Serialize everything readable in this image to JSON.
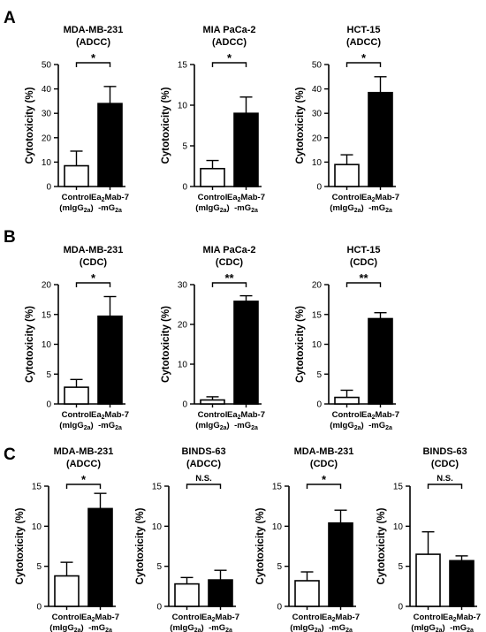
{
  "panels": [
    {
      "letter": "A",
      "charts": [
        0,
        1,
        2
      ]
    },
    {
      "letter": "B",
      "charts": [
        3,
        4,
        5
      ]
    },
    {
      "letter": "C",
      "charts": [
        6,
        7,
        8,
        9
      ]
    }
  ],
  "chart_data": [
    {
      "type": "bar",
      "title": "MDA-MB-231",
      "subtitle": "(ADCC)",
      "ylabel": "Cytotoxicity (%)",
      "ylim": [
        0,
        50
      ],
      "yticks": [
        0,
        10,
        20,
        30,
        40,
        50
      ],
      "categories": [
        {
          "line1_main": "Control",
          "line2_main": "(mIgG",
          "line2_sub": "2a",
          "line2_tail": ")"
        },
        {
          "line1_main": "Ea",
          "line1_sub": "2",
          "line1_tail": "Mab-7",
          "line2_main": "-mG",
          "line2_sub": "2a",
          "line2_tail": ""
        }
      ],
      "values": [
        8.5,
        34
      ],
      "errors": [
        6,
        7
      ],
      "fills": [
        "#ffffff",
        "#000000"
      ],
      "significance": "*"
    },
    {
      "type": "bar",
      "title": "MIA PaCa-2",
      "subtitle": "(ADCC)",
      "ylabel": "Cytotoxicity (%)",
      "ylim": [
        0,
        15
      ],
      "yticks": [
        0,
        5,
        10,
        15
      ],
      "categories": [
        {
          "line1_main": "Control",
          "line2_main": "(mIgG",
          "line2_sub": "2a",
          "line2_tail": ")"
        },
        {
          "line1_main": "Ea",
          "line1_sub": "2",
          "line1_tail": "Mab-7",
          "line2_main": "-mG",
          "line2_sub": "2a",
          "line2_tail": ""
        }
      ],
      "values": [
        2.2,
        9
      ],
      "errors": [
        1,
        2
      ],
      "fills": [
        "#ffffff",
        "#000000"
      ],
      "significance": "*"
    },
    {
      "type": "bar",
      "title": "HCT-15",
      "subtitle": "(ADCC)",
      "ylabel": "Cytotoxicity (%)",
      "ylim": [
        0,
        50
      ],
      "yticks": [
        0,
        10,
        20,
        30,
        40,
        50
      ],
      "categories": [
        {
          "line1_main": "Control",
          "line2_main": "(mIgG",
          "line2_sub": "2a",
          "line2_tail": ")"
        },
        {
          "line1_main": "Ea",
          "line1_sub": "2",
          "line1_tail": "Mab-7",
          "line2_main": "-mG",
          "line2_sub": "2a",
          "line2_tail": ""
        }
      ],
      "values": [
        9,
        38.5
      ],
      "errors": [
        4,
        6.5
      ],
      "fills": [
        "#ffffff",
        "#000000"
      ],
      "significance": "*"
    },
    {
      "type": "bar",
      "title": "MDA-MB-231",
      "subtitle": "(CDC)",
      "ylabel": "Cytotoxicity (%)",
      "ylim": [
        0,
        20
      ],
      "yticks": [
        0,
        5,
        10,
        15,
        20
      ],
      "categories": [
        {
          "line1_main": "Control",
          "line2_main": "(mIgG",
          "line2_sub": "2a",
          "line2_tail": ")"
        },
        {
          "line1_main": "Ea",
          "line1_sub": "2",
          "line1_tail": "Mab-7",
          "line2_main": "-mG",
          "line2_sub": "2a",
          "line2_tail": ""
        }
      ],
      "values": [
        2.8,
        14.7
      ],
      "errors": [
        1.3,
        3.3
      ],
      "fills": [
        "#ffffff",
        "#000000"
      ],
      "significance": "*"
    },
    {
      "type": "bar",
      "title": "MIA PaCa-2",
      "subtitle": "(CDC)",
      "ylabel": "Cytotoxicity (%)",
      "ylim": [
        0,
        30
      ],
      "yticks": [
        0,
        10,
        20,
        30
      ],
      "categories": [
        {
          "line1_main": "Control",
          "line2_main": "(mIgG",
          "line2_sub": "2a",
          "line2_tail": ")"
        },
        {
          "line1_main": "Ea",
          "line1_sub": "2",
          "line1_tail": "Mab-7",
          "line2_main": "-mG",
          "line2_sub": "2a",
          "line2_tail": ""
        }
      ],
      "values": [
        1,
        25.8
      ],
      "errors": [
        0.8,
        1.4
      ],
      "fills": [
        "#ffffff",
        "#000000"
      ],
      "significance": "**"
    },
    {
      "type": "bar",
      "title": "HCT-15",
      "subtitle": "(CDC)",
      "ylabel": "Cytotoxicity (%)",
      "ylim": [
        0,
        20
      ],
      "yticks": [
        0,
        5,
        10,
        15,
        20
      ],
      "categories": [
        {
          "line1_main": "Control",
          "line2_main": "(mIgG",
          "line2_sub": "2a",
          "line2_tail": ")"
        },
        {
          "line1_main": "Ea",
          "line1_sub": "2",
          "line1_tail": "Mab-7",
          "line2_main": "-mG",
          "line2_sub": "2a",
          "line2_tail": ""
        }
      ],
      "values": [
        1.1,
        14.3
      ],
      "errors": [
        1.2,
        1
      ],
      "fills": [
        "#ffffff",
        "#000000"
      ],
      "significance": "**"
    },
    {
      "type": "bar",
      "title": "MDA-MB-231",
      "subtitle": "(ADCC)",
      "ylabel": "Cytotoxicity (%)",
      "ylim": [
        0,
        15
      ],
      "yticks": [
        0,
        5,
        10,
        15
      ],
      "categories": [
        {
          "line1_main": "Control",
          "line2_main": "(mIgG",
          "line2_sub": "2a",
          "line2_tail": ")"
        },
        {
          "line1_main": "Ea",
          "line1_sub": "2",
          "line1_tail": "Mab-7",
          "line2_main": "-mG",
          "line2_sub": "2a",
          "line2_tail": ""
        }
      ],
      "values": [
        3.8,
        12.2
      ],
      "errors": [
        1.7,
        1.9
      ],
      "fills": [
        "#ffffff",
        "#000000"
      ],
      "significance": "*"
    },
    {
      "type": "bar",
      "title": "BINDS-63",
      "subtitle": "(ADCC)",
      "ylabel": "Cytotoxicity (%)",
      "ylim": [
        0,
        15
      ],
      "yticks": [
        0,
        5,
        10,
        15
      ],
      "categories": [
        {
          "line1_main": "Control",
          "line2_main": "(mIgG",
          "line2_sub": "2a",
          "line2_tail": ")"
        },
        {
          "line1_main": "Ea",
          "line1_sub": "2",
          "line1_tail": "Mab-7",
          "line2_main": "-mG",
          "line2_sub": "2a",
          "line2_tail": ""
        }
      ],
      "values": [
        2.8,
        3.3
      ],
      "errors": [
        0.8,
        1.2
      ],
      "fills": [
        "#ffffff",
        "#000000"
      ],
      "significance": "N.S."
    },
    {
      "type": "bar",
      "title": "MDA-MB-231",
      "subtitle": "(CDC)",
      "ylabel": "Cytotoxicity (%)",
      "ylim": [
        0,
        15
      ],
      "yticks": [
        0,
        5,
        10,
        15
      ],
      "categories": [
        {
          "line1_main": "Control",
          "line2_main": "(mIgG",
          "line2_sub": "2a",
          "line2_tail": ")"
        },
        {
          "line1_main": "Ea",
          "line1_sub": "2",
          "line1_tail": "Mab-7",
          "line2_main": "-mG",
          "line2_sub": "2a",
          "line2_tail": ""
        }
      ],
      "values": [
        3.2,
        10.4
      ],
      "errors": [
        1.1,
        1.6
      ],
      "fills": [
        "#ffffff",
        "#000000"
      ],
      "significance": "*"
    },
    {
      "type": "bar",
      "title": "BINDS-63",
      "subtitle": "(CDC)",
      "ylabel": "Cytotoxicity (%)",
      "ylim": [
        0,
        15
      ],
      "yticks": [
        0,
        5,
        10,
        15
      ],
      "categories": [
        {
          "line1_main": "Control",
          "line2_main": "(mIgG",
          "line2_sub": "2a",
          "line2_tail": ")"
        },
        {
          "line1_main": "Ea",
          "line1_sub": "2",
          "line1_tail": "Mab-7",
          "line2_main": "-mG",
          "line2_sub": "2a",
          "line2_tail": ""
        }
      ],
      "values": [
        6.5,
        5.7
      ],
      "errors": [
        2.8,
        0.6
      ],
      "fills": [
        "#ffffff",
        "#000000"
      ],
      "significance": "N.S."
    }
  ]
}
